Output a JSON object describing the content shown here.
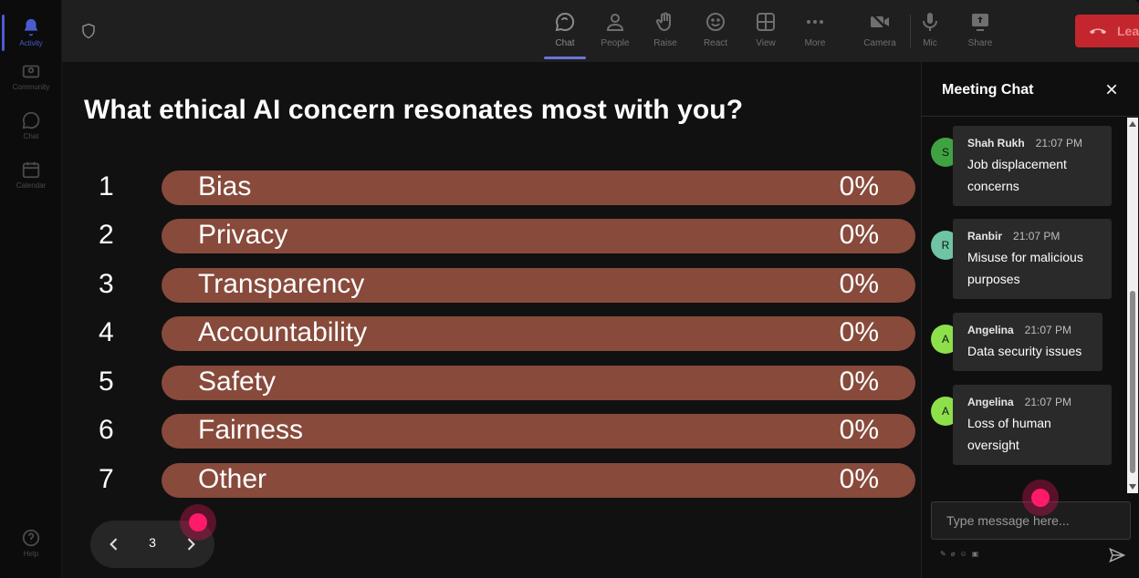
{
  "rail": {
    "items": [
      {
        "label": "Activity",
        "icon": "bell-icon",
        "active": true
      },
      {
        "label": "Community",
        "icon": "people-group-icon"
      },
      {
        "label": "Chat",
        "icon": "chat-bubble-icon"
      },
      {
        "label": "Calendar",
        "icon": "calendar-icon"
      }
    ],
    "help_label": "Help"
  },
  "toolbar": {
    "chat": "Chat",
    "people": "People",
    "raise": "Raise",
    "react": "React",
    "view": "View",
    "more": "More",
    "camera": "Camera",
    "mic": "Mic",
    "share": "Share",
    "leave": "Leave"
  },
  "poll": {
    "question": "What ethical AI concern resonates most with you?",
    "options": [
      {
        "num": "1",
        "label": "Bias",
        "pct": "0%"
      },
      {
        "num": "2",
        "label": "Privacy",
        "pct": "0%"
      },
      {
        "num": "3",
        "label": "Transparency",
        "pct": "0%"
      },
      {
        "num": "4",
        "label": "Accountability",
        "pct": "0%"
      },
      {
        "num": "5",
        "label": "Safety",
        "pct": "0%"
      },
      {
        "num": "6",
        "label": "Fairness",
        "pct": "0%"
      },
      {
        "num": "7",
        "label": "Other",
        "pct": "0%"
      }
    ],
    "page": "3"
  },
  "chat": {
    "title": "Meeting Chat",
    "messages": [
      {
        "initial": "S",
        "name": "Shah Rukh",
        "time": "21:07 PM",
        "text_lines": [
          "Job displacement",
          "concerns"
        ],
        "avatar_color": "#3fa341"
      },
      {
        "initial": "R",
        "name": "Ranbir",
        "time": "21:07 PM",
        "text_lines": [
          "Misuse for malicious",
          "purposes"
        ],
        "avatar_color": "#6fc4a3"
      },
      {
        "initial": "A",
        "name": "Angelina",
        "time": "21:07 PM",
        "text_lines": [
          "Data security issues"
        ],
        "avatar_color": "#8de04a"
      },
      {
        "initial": "A",
        "name": "Angelina",
        "time": "21:07 PM",
        "text_lines": [
          "Loss of human",
          "oversight"
        ],
        "avatar_color": "#8de04a"
      }
    ],
    "input_placeholder": "Type message here..."
  },
  "colors": {
    "bar": "#874a3b",
    "leave": "#c4262e",
    "accent": "#4a5bd0"
  }
}
